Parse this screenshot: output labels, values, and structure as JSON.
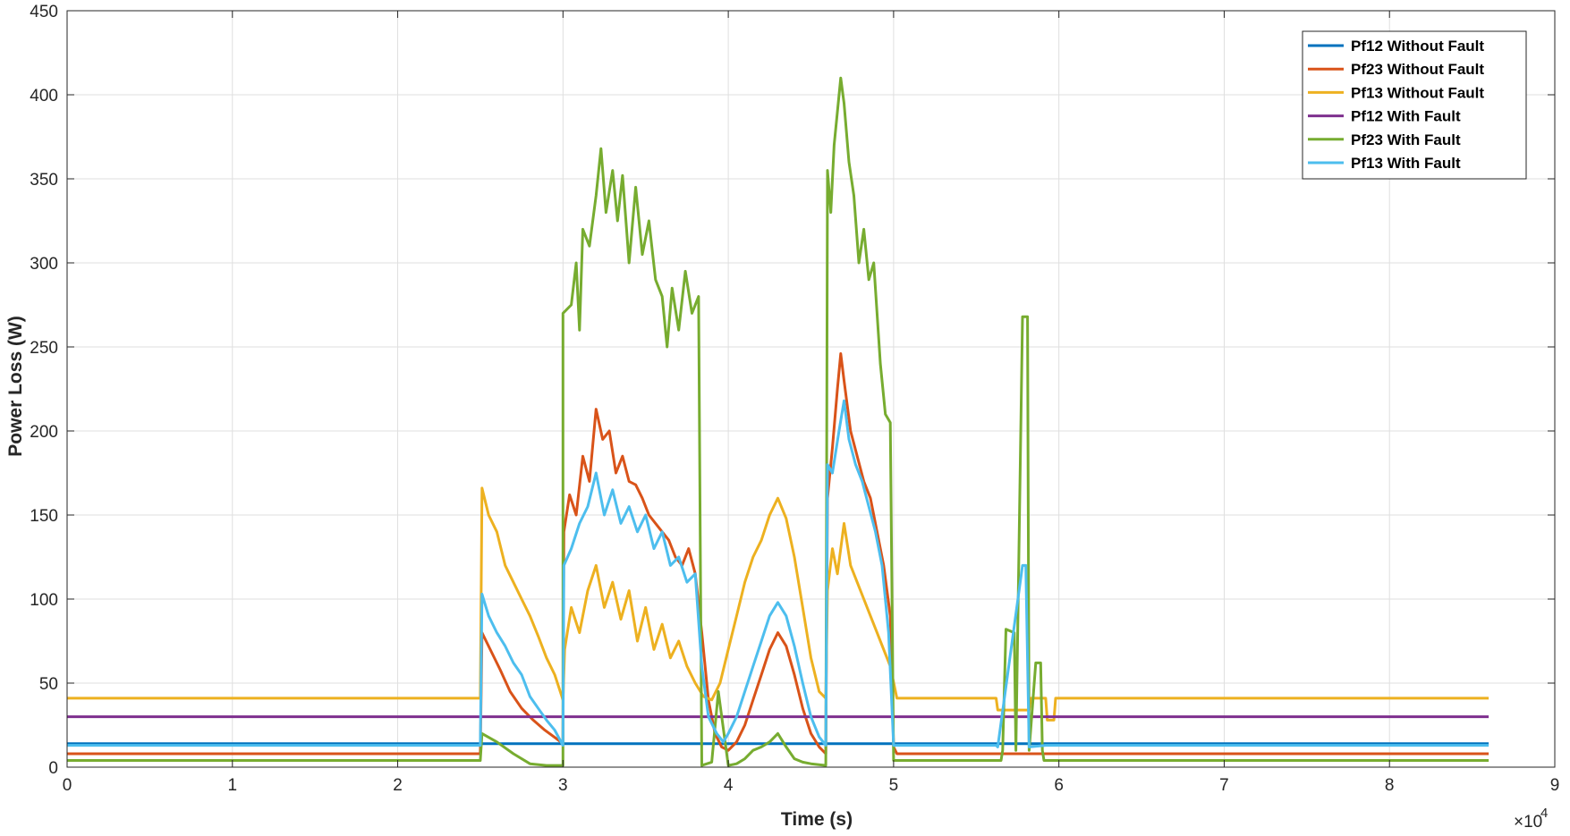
{
  "chart_data": {
    "type": "line",
    "title": "",
    "xlabel": "Time (s)",
    "ylabel": "Power Loss (W)",
    "x_exponent_label": "×10",
    "x_exponent_power": "4",
    "xlim": [
      0,
      90000
    ],
    "ylim": [
      0,
      450
    ],
    "grid": true,
    "legend_position": "top-right",
    "x_ticks": [
      0,
      10000,
      20000,
      30000,
      40000,
      50000,
      60000,
      70000,
      80000,
      90000
    ],
    "x_tick_labels": [
      "0",
      "1",
      "2",
      "3",
      "4",
      "5",
      "6",
      "7",
      "8",
      "9"
    ],
    "y_ticks": [
      0,
      50,
      100,
      150,
      200,
      250,
      300,
      350,
      400,
      450
    ],
    "y_tick_labels": [
      "0",
      "50",
      "100",
      "150",
      "200",
      "250",
      "300",
      "350",
      "400",
      "450"
    ],
    "series": [
      {
        "name": "Pf12 Without Fault",
        "color": "#0072BD",
        "points": [
          [
            0,
            14
          ],
          [
            86000,
            14
          ]
        ]
      },
      {
        "name": "Pf23 Without Fault",
        "color": "#D95319",
        "points": [
          [
            0,
            8
          ],
          [
            25000,
            8
          ],
          [
            25100,
            80
          ],
          [
            25600,
            70
          ],
          [
            26200,
            58
          ],
          [
            26800,
            45
          ],
          [
            27500,
            35
          ],
          [
            28200,
            28
          ],
          [
            28900,
            22
          ],
          [
            29600,
            17
          ],
          [
            30000,
            14
          ],
          [
            30050,
            140
          ],
          [
            30400,
            162
          ],
          [
            30800,
            150
          ],
          [
            31200,
            185
          ],
          [
            31600,
            170
          ],
          [
            32000,
            213
          ],
          [
            32400,
            195
          ],
          [
            32800,
            200
          ],
          [
            33200,
            175
          ],
          [
            33600,
            185
          ],
          [
            34000,
            170
          ],
          [
            34400,
            168
          ],
          [
            34800,
            160
          ],
          [
            35200,
            150
          ],
          [
            35600,
            145
          ],
          [
            36000,
            140
          ],
          [
            36400,
            135
          ],
          [
            36800,
            125
          ],
          [
            37200,
            120
          ],
          [
            37600,
            130
          ],
          [
            38000,
            115
          ],
          [
            38400,
            80
          ],
          [
            38800,
            40
          ],
          [
            39200,
            20
          ],
          [
            39600,
            12
          ],
          [
            40000,
            10
          ],
          [
            40500,
            15
          ],
          [
            41000,
            25
          ],
          [
            41500,
            40
          ],
          [
            42000,
            55
          ],
          [
            42500,
            70
          ],
          [
            43000,
            80
          ],
          [
            43500,
            72
          ],
          [
            44000,
            55
          ],
          [
            44500,
            35
          ],
          [
            45000,
            20
          ],
          [
            45500,
            12
          ],
          [
            45900,
            8
          ],
          [
            46000,
            160
          ],
          [
            46300,
            190
          ],
          [
            46600,
            225
          ],
          [
            46800,
            246
          ],
          [
            47000,
            230
          ],
          [
            47400,
            200
          ],
          [
            47800,
            185
          ],
          [
            48200,
            170
          ],
          [
            48600,
            160
          ],
          [
            49000,
            140
          ],
          [
            49400,
            120
          ],
          [
            49800,
            90
          ],
          [
            50000,
            12
          ],
          [
            50200,
            8
          ],
          [
            86000,
            8
          ]
        ]
      },
      {
        "name": "Pf13 Without Fault",
        "color": "#EDB120",
        "points": [
          [
            0,
            41
          ],
          [
            25000,
            41
          ],
          [
            25100,
            166
          ],
          [
            25500,
            150
          ],
          [
            26000,
            140
          ],
          [
            26500,
            120
          ],
          [
            27000,
            110
          ],
          [
            27500,
            100
          ],
          [
            28000,
            90
          ],
          [
            28500,
            78
          ],
          [
            29000,
            65
          ],
          [
            29500,
            55
          ],
          [
            30000,
            40
          ],
          [
            30100,
            70
          ],
          [
            30500,
            95
          ],
          [
            31000,
            80
          ],
          [
            31500,
            105
          ],
          [
            32000,
            120
          ],
          [
            32500,
            95
          ],
          [
            33000,
            110
          ],
          [
            33500,
            88
          ],
          [
            34000,
            105
          ],
          [
            34500,
            75
          ],
          [
            35000,
            95
          ],
          [
            35500,
            70
          ],
          [
            36000,
            85
          ],
          [
            36500,
            65
          ],
          [
            37000,
            75
          ],
          [
            37500,
            60
          ],
          [
            38000,
            50
          ],
          [
            38500,
            42
          ],
          [
            39000,
            40
          ],
          [
            39500,
            50
          ],
          [
            40000,
            70
          ],
          [
            40500,
            90
          ],
          [
            41000,
            110
          ],
          [
            41500,
            125
          ],
          [
            42000,
            135
          ],
          [
            42500,
            150
          ],
          [
            43000,
            160
          ],
          [
            43500,
            148
          ],
          [
            44000,
            125
          ],
          [
            44500,
            95
          ],
          [
            45000,
            65
          ],
          [
            45500,
            45
          ],
          [
            45900,
            41
          ],
          [
            46000,
            105
          ],
          [
            46300,
            130
          ],
          [
            46600,
            115
          ],
          [
            47000,
            145
          ],
          [
            47400,
            120
          ],
          [
            47800,
            110
          ],
          [
            48200,
            100
          ],
          [
            48600,
            90
          ],
          [
            49000,
            80
          ],
          [
            49400,
            70
          ],
          [
            49800,
            60
          ],
          [
            50200,
            41
          ],
          [
            56200,
            41
          ],
          [
            56300,
            34
          ],
          [
            58200,
            34
          ],
          [
            58300,
            41
          ],
          [
            59200,
            41
          ],
          [
            59300,
            28
          ],
          [
            59700,
            28
          ],
          [
            59800,
            41
          ],
          [
            86000,
            41
          ]
        ]
      },
      {
        "name": "Pf12 With Fault",
        "color": "#7E2F8E",
        "points": [
          [
            0,
            30
          ],
          [
            86000,
            30
          ]
        ]
      },
      {
        "name": "Pf23 With Fault",
        "color": "#77AC30",
        "points": [
          [
            0,
            4
          ],
          [
            25000,
            4
          ],
          [
            25100,
            20
          ],
          [
            26000,
            15
          ],
          [
            27000,
            8
          ],
          [
            28000,
            2
          ],
          [
            29000,
            1
          ],
          [
            30000,
            1
          ],
          [
            30000,
            270
          ],
          [
            30500,
            275
          ],
          [
            30800,
            300
          ],
          [
            31000,
            260
          ],
          [
            31200,
            320
          ],
          [
            31600,
            310
          ],
          [
            32000,
            340
          ],
          [
            32300,
            368
          ],
          [
            32600,
            330
          ],
          [
            33000,
            355
          ],
          [
            33300,
            325
          ],
          [
            33600,
            352
          ],
          [
            34000,
            300
          ],
          [
            34400,
            345
          ],
          [
            34800,
            305
          ],
          [
            35200,
            325
          ],
          [
            35600,
            290
          ],
          [
            36000,
            280
          ],
          [
            36300,
            250
          ],
          [
            36600,
            285
          ],
          [
            37000,
            260
          ],
          [
            37400,
            295
          ],
          [
            37800,
            270
          ],
          [
            38200,
            280
          ],
          [
            38400,
            1
          ],
          [
            39000,
            3
          ],
          [
            39400,
            45
          ],
          [
            40000,
            1
          ],
          [
            40500,
            2
          ],
          [
            41000,
            5
          ],
          [
            41500,
            10
          ],
          [
            42000,
            12
          ],
          [
            42500,
            15
          ],
          [
            43000,
            20
          ],
          [
            43500,
            12
          ],
          [
            44000,
            5
          ],
          [
            44500,
            3
          ],
          [
            45000,
            2
          ],
          [
            45900,
            1
          ],
          [
            46000,
            355
          ],
          [
            46200,
            330
          ],
          [
            46400,
            370
          ],
          [
            46600,
            390
          ],
          [
            46800,
            410
          ],
          [
            47000,
            395
          ],
          [
            47300,
            360
          ],
          [
            47600,
            340
          ],
          [
            47900,
            300
          ],
          [
            48200,
            320
          ],
          [
            48500,
            290
          ],
          [
            48800,
            300
          ],
          [
            49200,
            240
          ],
          [
            49500,
            210
          ],
          [
            49800,
            205
          ],
          [
            50000,
            4
          ],
          [
            56500,
            4
          ],
          [
            56600,
            10
          ],
          [
            56800,
            82
          ],
          [
            57300,
            80
          ],
          [
            57400,
            10
          ],
          [
            57800,
            268
          ],
          [
            58100,
            268
          ],
          [
            58200,
            10
          ],
          [
            58600,
            62
          ],
          [
            58900,
            62
          ],
          [
            59000,
            10
          ],
          [
            59100,
            4
          ],
          [
            86000,
            4
          ]
        ]
      },
      {
        "name": "Pf13 With Fault",
        "color": "#4DBEEE",
        "points": [
          [
            0,
            13
          ],
          [
            25000,
            13
          ],
          [
            25100,
            103
          ],
          [
            25500,
            90
          ],
          [
            26000,
            80
          ],
          [
            26500,
            72
          ],
          [
            27000,
            62
          ],
          [
            27500,
            55
          ],
          [
            28000,
            42
          ],
          [
            28500,
            35
          ],
          [
            29000,
            28
          ],
          [
            29500,
            22
          ],
          [
            30000,
            13
          ],
          [
            30050,
            120
          ],
          [
            30500,
            130
          ],
          [
            31000,
            145
          ],
          [
            31500,
            155
          ],
          [
            32000,
            175
          ],
          [
            32500,
            150
          ],
          [
            33000,
            165
          ],
          [
            33500,
            145
          ],
          [
            34000,
            155
          ],
          [
            34500,
            140
          ],
          [
            35000,
            150
          ],
          [
            35500,
            130
          ],
          [
            36000,
            140
          ],
          [
            36500,
            120
          ],
          [
            37000,
            125
          ],
          [
            37500,
            110
          ],
          [
            38000,
            115
          ],
          [
            38400,
            60
          ],
          [
            38800,
            30
          ],
          [
            39300,
            20
          ],
          [
            39700,
            15
          ],
          [
            40000,
            20
          ],
          [
            40500,
            30
          ],
          [
            41000,
            45
          ],
          [
            41500,
            60
          ],
          [
            42000,
            75
          ],
          [
            42500,
            90
          ],
          [
            43000,
            98
          ],
          [
            43500,
            90
          ],
          [
            44000,
            72
          ],
          [
            44500,
            50
          ],
          [
            45000,
            30
          ],
          [
            45500,
            18
          ],
          [
            45900,
            13
          ],
          [
            46000,
            180
          ],
          [
            46300,
            175
          ],
          [
            46700,
            200
          ],
          [
            47000,
            218
          ],
          [
            47300,
            195
          ],
          [
            47700,
            180
          ],
          [
            48100,
            170
          ],
          [
            48500,
            155
          ],
          [
            48900,
            140
          ],
          [
            49300,
            120
          ],
          [
            49700,
            80
          ],
          [
            50000,
            13
          ],
          [
            56200,
            13
          ],
          [
            56300,
            12
          ],
          [
            57800,
            120
          ],
          [
            58000,
            120
          ],
          [
            58200,
            12
          ],
          [
            59200,
            13
          ],
          [
            86000,
            13
          ]
        ]
      }
    ]
  }
}
